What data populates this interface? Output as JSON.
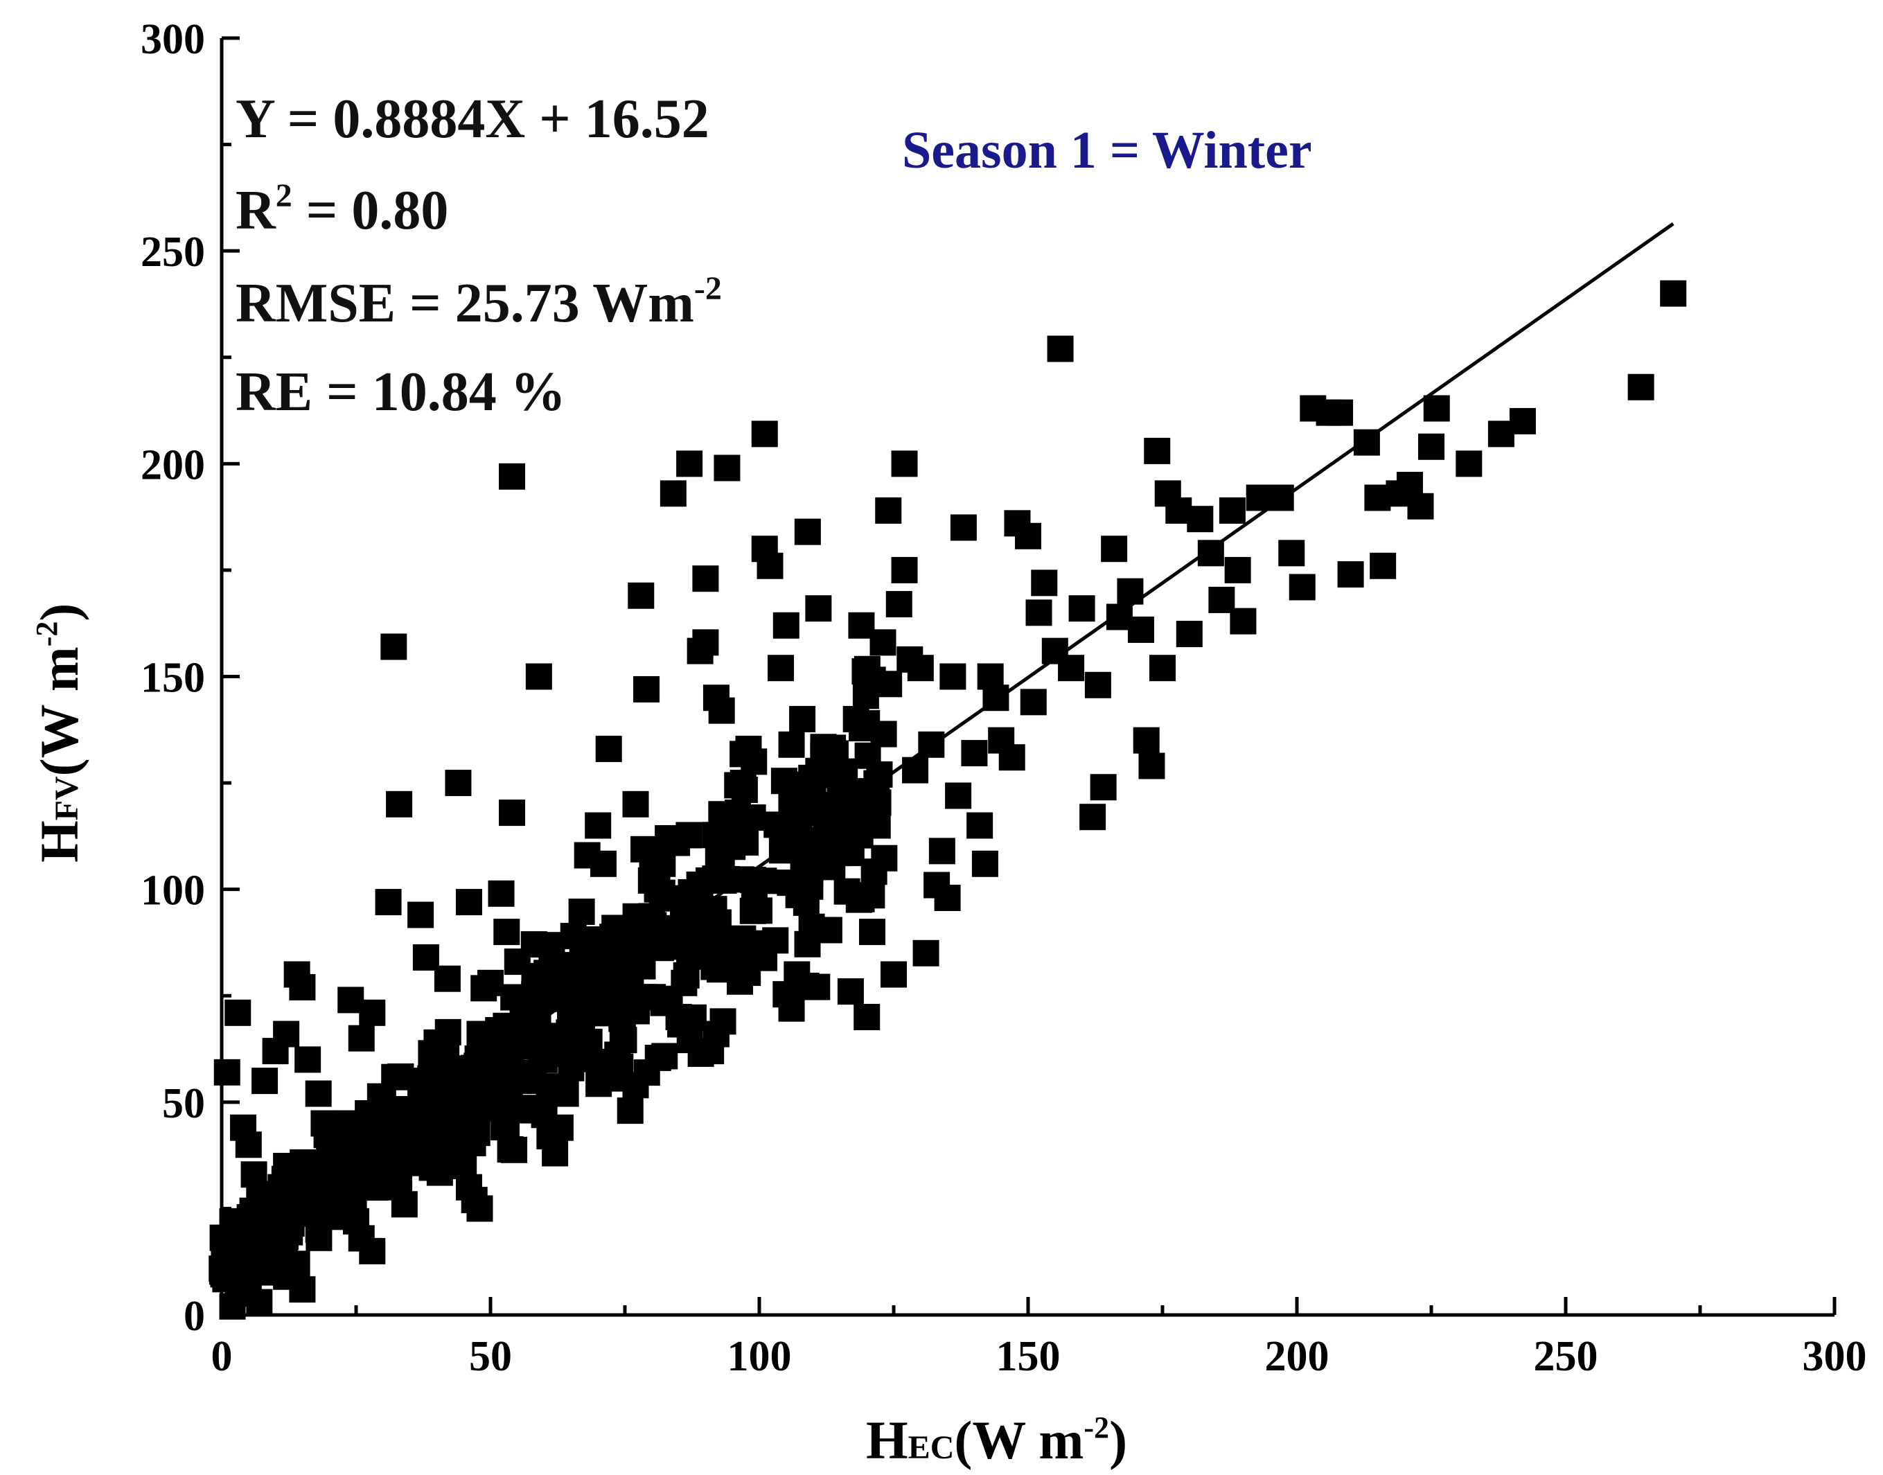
{
  "chart_data": {
    "type": "scatter",
    "title": "",
    "xlabel": {
      "main": "H",
      "sub": "EC",
      "unit_open": "(W m",
      "unit_sup": "-2",
      "unit_close": ")"
    },
    "ylabel": {
      "main": "H",
      "sub": "FV",
      "unit_open": "(W m",
      "unit_sup": "-2",
      "unit_close": ")"
    },
    "xlim": [
      0,
      300
    ],
    "ylim": [
      0,
      300
    ],
    "xticks": [
      "0",
      "50",
      "100",
      "150",
      "200",
      "250",
      "300"
    ],
    "yticks": [
      "0",
      "50",
      "100",
      "150",
      "200",
      "250",
      "300"
    ],
    "grid": false,
    "regression": {
      "slope": 0.8884,
      "intercept": 16.52,
      "x_range": [
        0,
        270
      ]
    },
    "stats": {
      "equation": "Y = 0.8884X + 16.52",
      "r2_prefix": "R",
      "r2_sup": "2",
      "r2_suffix": " = 0.80",
      "rmse_prefix": "RMSE = 25.73 Wm",
      "rmse_sup": "-2",
      "re": "RE = 10.84 %"
    },
    "annotation": {
      "text": "Season 1 = Winter",
      "color": "#1a1a8c"
    },
    "marker_color": "#000000",
    "points": [
      [
        1,
        57
      ],
      [
        3,
        71
      ],
      [
        4,
        44
      ],
      [
        5,
        40
      ],
      [
        6,
        33
      ],
      [
        7,
        28
      ],
      [
        2,
        22
      ],
      [
        4,
        18
      ],
      [
        6,
        14
      ],
      [
        8,
        10
      ],
      [
        3,
        8
      ],
      [
        5,
        5
      ],
      [
        7,
        3
      ],
      [
        2,
        2
      ],
      [
        9,
        20
      ],
      [
        10,
        25
      ],
      [
        11,
        30
      ],
      [
        12,
        35
      ],
      [
        8,
        55
      ],
      [
        10,
        62
      ],
      [
        12,
        66
      ],
      [
        14,
        80
      ],
      [
        15,
        77
      ],
      [
        16,
        60
      ],
      [
        18,
        52
      ],
      [
        19,
        45
      ],
      [
        20,
        38
      ],
      [
        22,
        30
      ],
      [
        24,
        26
      ],
      [
        25,
        22
      ],
      [
        26,
        18
      ],
      [
        28,
        15
      ],
      [
        14,
        12
      ],
      [
        15,
        6
      ],
      [
        12,
        9
      ],
      [
        18,
        20
      ],
      [
        20,
        28
      ],
      [
        22,
        35
      ],
      [
        24,
        74
      ],
      [
        26,
        65
      ],
      [
        28,
        71
      ],
      [
        30,
        50
      ],
      [
        31,
        42
      ],
      [
        32,
        36
      ],
      [
        33,
        30
      ],
      [
        34,
        26
      ],
      [
        35,
        44
      ],
      [
        36,
        48
      ],
      [
        37,
        52
      ],
      [
        38,
        55
      ],
      [
        39,
        60
      ],
      [
        40,
        64
      ],
      [
        41,
        58
      ],
      [
        42,
        50
      ],
      [
        43,
        46
      ],
      [
        44,
        41
      ],
      [
        45,
        35
      ],
      [
        46,
        30
      ],
      [
        47,
        27
      ],
      [
        48,
        25
      ],
      [
        31,
        97
      ],
      [
        32,
        157
      ],
      [
        33,
        120
      ],
      [
        37,
        94
      ],
      [
        38,
        84
      ],
      [
        42,
        79
      ],
      [
        44,
        125
      ],
      [
        46,
        97
      ],
      [
        48,
        66
      ],
      [
        50,
        78
      ],
      [
        52,
        99
      ],
      [
        53,
        90
      ],
      [
        54,
        118
      ],
      [
        54,
        197
      ],
      [
        55,
        83
      ],
      [
        56,
        72
      ],
      [
        57,
        64
      ],
      [
        58,
        55
      ],
      [
        59,
        150
      ],
      [
        60,
        47
      ],
      [
        61,
        42
      ],
      [
        62,
        38
      ],
      [
        63,
        44
      ],
      [
        64,
        52
      ],
      [
        65,
        58
      ],
      [
        66,
        62
      ],
      [
        67,
        68
      ],
      [
        68,
        72
      ],
      [
        68,
        108
      ],
      [
        70,
        115
      ],
      [
        71,
        106
      ],
      [
        72,
        133
      ],
      [
        73,
        75
      ],
      [
        74,
        82
      ],
      [
        75,
        88
      ],
      [
        76,
        48
      ],
      [
        77,
        54
      ],
      [
        77,
        120
      ],
      [
        78,
        169
      ],
      [
        79,
        147
      ],
      [
        80,
        92
      ],
      [
        81,
        100
      ],
      [
        82,
        106
      ],
      [
        83,
        112
      ],
      [
        84,
        193
      ],
      [
        85,
        70
      ],
      [
        86,
        78
      ],
      [
        87,
        85
      ],
      [
        87,
        200
      ],
      [
        88,
        92
      ],
      [
        89,
        98
      ],
      [
        89,
        156
      ],
      [
        90,
        158
      ],
      [
        90,
        173
      ],
      [
        91,
        62
      ],
      [
        92,
        66
      ],
      [
        92,
        145
      ],
      [
        93,
        142
      ],
      [
        94,
        199
      ],
      [
        95,
        110
      ],
      [
        96,
        118
      ],
      [
        97,
        125
      ],
      [
        98,
        133
      ],
      [
        99,
        130
      ],
      [
        100,
        95
      ],
      [
        101,
        180
      ],
      [
        101,
        207
      ],
      [
        102,
        176
      ],
      [
        103,
        88
      ],
      [
        104,
        152
      ],
      [
        105,
        162
      ],
      [
        106,
        72
      ],
      [
        106,
        134
      ],
      [
        107,
        80
      ],
      [
        108,
        140
      ],
      [
        109,
        184
      ],
      [
        110,
        124
      ],
      [
        111,
        166
      ],
      [
        112,
        118
      ],
      [
        113,
        113
      ],
      [
        114,
        128
      ],
      [
        115,
        122
      ],
      [
        116,
        110
      ],
      [
        117,
        76
      ],
      [
        118,
        140
      ],
      [
        119,
        162
      ],
      [
        120,
        139
      ],
      [
        120,
        70
      ],
      [
        121,
        90
      ],
      [
        122,
        115
      ],
      [
        123,
        158
      ],
      [
        124,
        189
      ],
      [
        125,
        80
      ],
      [
        126,
        167
      ],
      [
        127,
        175
      ],
      [
        127,
        200
      ],
      [
        128,
        154
      ],
      [
        129,
        128
      ],
      [
        130,
        152
      ],
      [
        131,
        85
      ],
      [
        132,
        134
      ],
      [
        133,
        101
      ],
      [
        134,
        109
      ],
      [
        135,
        98
      ],
      [
        136,
        150
      ],
      [
        137,
        122
      ],
      [
        138,
        185
      ],
      [
        140,
        132
      ],
      [
        141,
        115
      ],
      [
        142,
        106
      ],
      [
        143,
        150
      ],
      [
        144,
        145
      ],
      [
        145,
        135
      ],
      [
        147,
        131
      ],
      [
        148,
        186
      ],
      [
        150,
        183
      ],
      [
        151,
        144
      ],
      [
        152,
        165
      ],
      [
        153,
        172
      ],
      [
        155,
        156
      ],
      [
        156,
        227
      ],
      [
        158,
        152
      ],
      [
        160,
        166
      ],
      [
        162,
        117
      ],
      [
        163,
        148
      ],
      [
        164,
        124
      ],
      [
        166,
        180
      ],
      [
        167,
        164
      ],
      [
        169,
        170
      ],
      [
        171,
        161
      ],
      [
        172,
        135
      ],
      [
        173,
        129
      ],
      [
        174,
        203
      ],
      [
        175,
        152
      ],
      [
        176,
        193
      ],
      [
        178,
        189
      ],
      [
        180,
        160
      ],
      [
        182,
        187
      ],
      [
        184,
        179
      ],
      [
        186,
        168
      ],
      [
        188,
        189
      ],
      [
        189,
        175
      ],
      [
        190,
        163
      ],
      [
        193,
        192
      ],
      [
        197,
        192
      ],
      [
        199,
        179
      ],
      [
        201,
        171
      ],
      [
        203,
        213
      ],
      [
        206,
        212
      ],
      [
        208,
        212
      ],
      [
        210,
        174
      ],
      [
        213,
        205
      ],
      [
        215,
        192
      ],
      [
        216,
        176
      ],
      [
        219,
        193
      ],
      [
        221,
        195
      ],
      [
        223,
        190
      ],
      [
        225,
        204
      ],
      [
        226,
        213
      ],
      [
        232,
        200
      ],
      [
        238,
        207
      ],
      [
        242,
        210
      ],
      [
        264,
        218
      ],
      [
        270,
        240
      ]
    ],
    "lower_cluster": {
      "count": 520,
      "x_range": [
        0,
        125
      ],
      "note": "dense cloud of markers around the regression line for low-to-moderate flux values"
    }
  }
}
